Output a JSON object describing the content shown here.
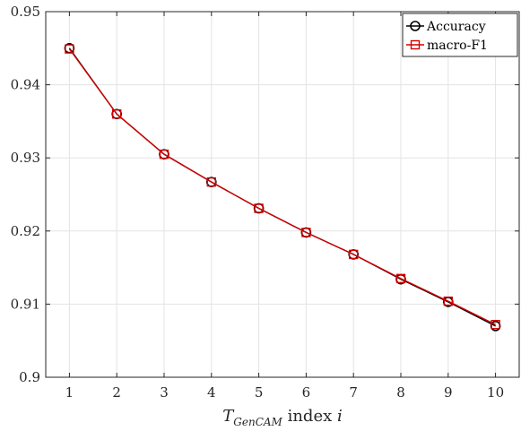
{
  "chart_data": {
    "type": "line",
    "x": [
      1,
      2,
      3,
      4,
      5,
      6,
      7,
      8,
      9,
      10
    ],
    "xlim": [
      0.5,
      10.5
    ],
    "ylim": [
      0.9,
      0.95
    ],
    "xticks": [
      "1",
      "2",
      "3",
      "4",
      "5",
      "6",
      "7",
      "8",
      "9",
      "10"
    ],
    "yticks": [
      "0.9",
      "0.91",
      "0.92",
      "0.93",
      "0.94",
      "0.95"
    ],
    "ytick_values": [
      0.9,
      0.91,
      0.92,
      0.93,
      0.94,
      0.95
    ],
    "grid": true,
    "legend_position": "top-right",
    "xlabel": {
      "main": "T",
      "subscript": "GenCAM",
      "text": " index ",
      "var": "i"
    },
    "ylabel": "",
    "title": "",
    "series": [
      {
        "name": "Accuracy",
        "marker": "circle",
        "color": "#000000",
        "values": [
          0.945,
          0.936,
          0.9305,
          0.9267,
          0.9231,
          0.9198,
          0.9168,
          0.9134,
          0.9103,
          0.907
        ]
      },
      {
        "name": "macro-F1",
        "marker": "square",
        "color": "#d40000",
        "values": [
          0.9449,
          0.936,
          0.9305,
          0.9267,
          0.9231,
          0.9198,
          0.9168,
          0.9135,
          0.9104,
          0.9072
        ]
      }
    ]
  }
}
